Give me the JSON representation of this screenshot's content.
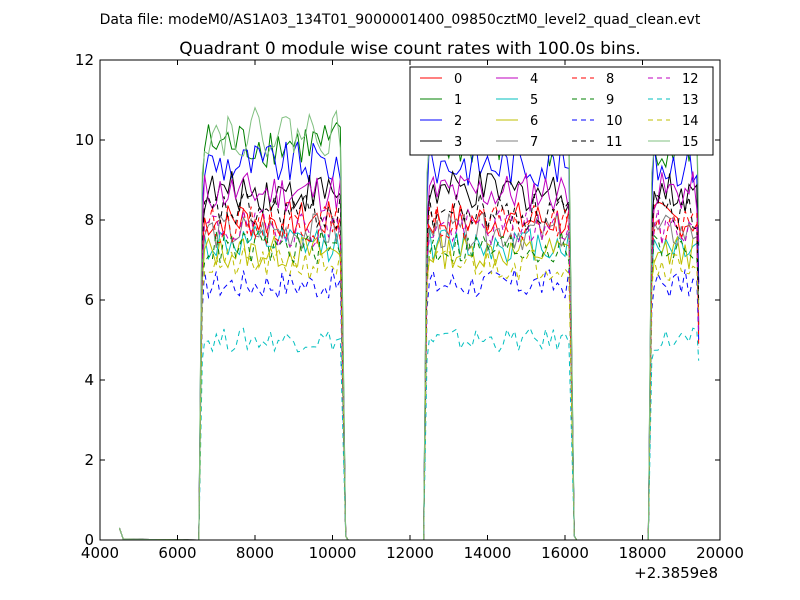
{
  "chart_data": {
    "type": "line",
    "suptitle": "Data file: modeM0/AS1A03_134T01_9000001400_09850cztM0_level2_quad_clean.evt",
    "title": "Quadrant 0 module wise count rates with 100.0s bins.",
    "xlabel": "",
    "ylabel": "",
    "x_offset_label": "+2.3859e8",
    "xlim": [
      4000,
      20000
    ],
    "ylim": [
      0,
      12
    ],
    "x_ticks": [
      4000,
      6000,
      8000,
      10000,
      12000,
      14000,
      16000,
      18000,
      20000
    ],
    "y_ticks": [
      0,
      2,
      4,
      6,
      8,
      10,
      12
    ],
    "x_tick_labels": [
      "4000",
      "6000",
      "8000",
      "10000",
      "12000",
      "14000",
      "16000",
      "18000",
      "20000"
    ],
    "y_tick_labels": [
      "0",
      "2",
      "4",
      "6",
      "8",
      "10",
      "12"
    ],
    "grid": false,
    "legend_position": "top-right",
    "segments": [
      {
        "start": 6600,
        "end": 10300
      },
      {
        "start": 12400,
        "end": 16200
      },
      {
        "start": 18200,
        "end": 19450
      }
    ],
    "series": [
      {
        "name": "0",
        "color": "#ff0000",
        "dash": "solid",
        "level": 8.0
      },
      {
        "name": "1",
        "color": "#008000",
        "dash": "solid",
        "level": 9.9
      },
      {
        "name": "2",
        "color": "#0000ff",
        "dash": "solid",
        "level": 9.4
      },
      {
        "name": "3",
        "color": "#000000",
        "dash": "solid",
        "level": 8.7
      },
      {
        "name": "4",
        "color": "#bf00bf",
        "dash": "solid",
        "level": 8.7
      },
      {
        "name": "5",
        "color": "#00bfbf",
        "dash": "solid",
        "level": 7.4
      },
      {
        "name": "6",
        "color": "#bfbf00",
        "dash": "solid",
        "level": 7.2
      },
      {
        "name": "7",
        "color": "#808080",
        "dash": "solid",
        "level": 7.7
      },
      {
        "name": "8",
        "color": "#ff0000",
        "dash": "dashed",
        "level": 7.9
      },
      {
        "name": "9",
        "color": "#008000",
        "dash": "dashed",
        "level": 7.3
      },
      {
        "name": "10",
        "color": "#0000ff",
        "dash": "dashed",
        "level": 6.4
      },
      {
        "name": "11",
        "color": "#000000",
        "dash": "dashed",
        "level": 8.2
      },
      {
        "name": "12",
        "color": "#bf00bf",
        "dash": "dashed",
        "level": 7.8
      },
      {
        "name": "13",
        "color": "#00bfbf",
        "dash": "dashed",
        "level": 5.0
      },
      {
        "name": "14",
        "color": "#bfbf00",
        "dash": "dashed",
        "level": 6.9
      },
      {
        "name": "15",
        "color": "#80c080",
        "dash": "solid",
        "level": 10.2
      }
    ]
  }
}
